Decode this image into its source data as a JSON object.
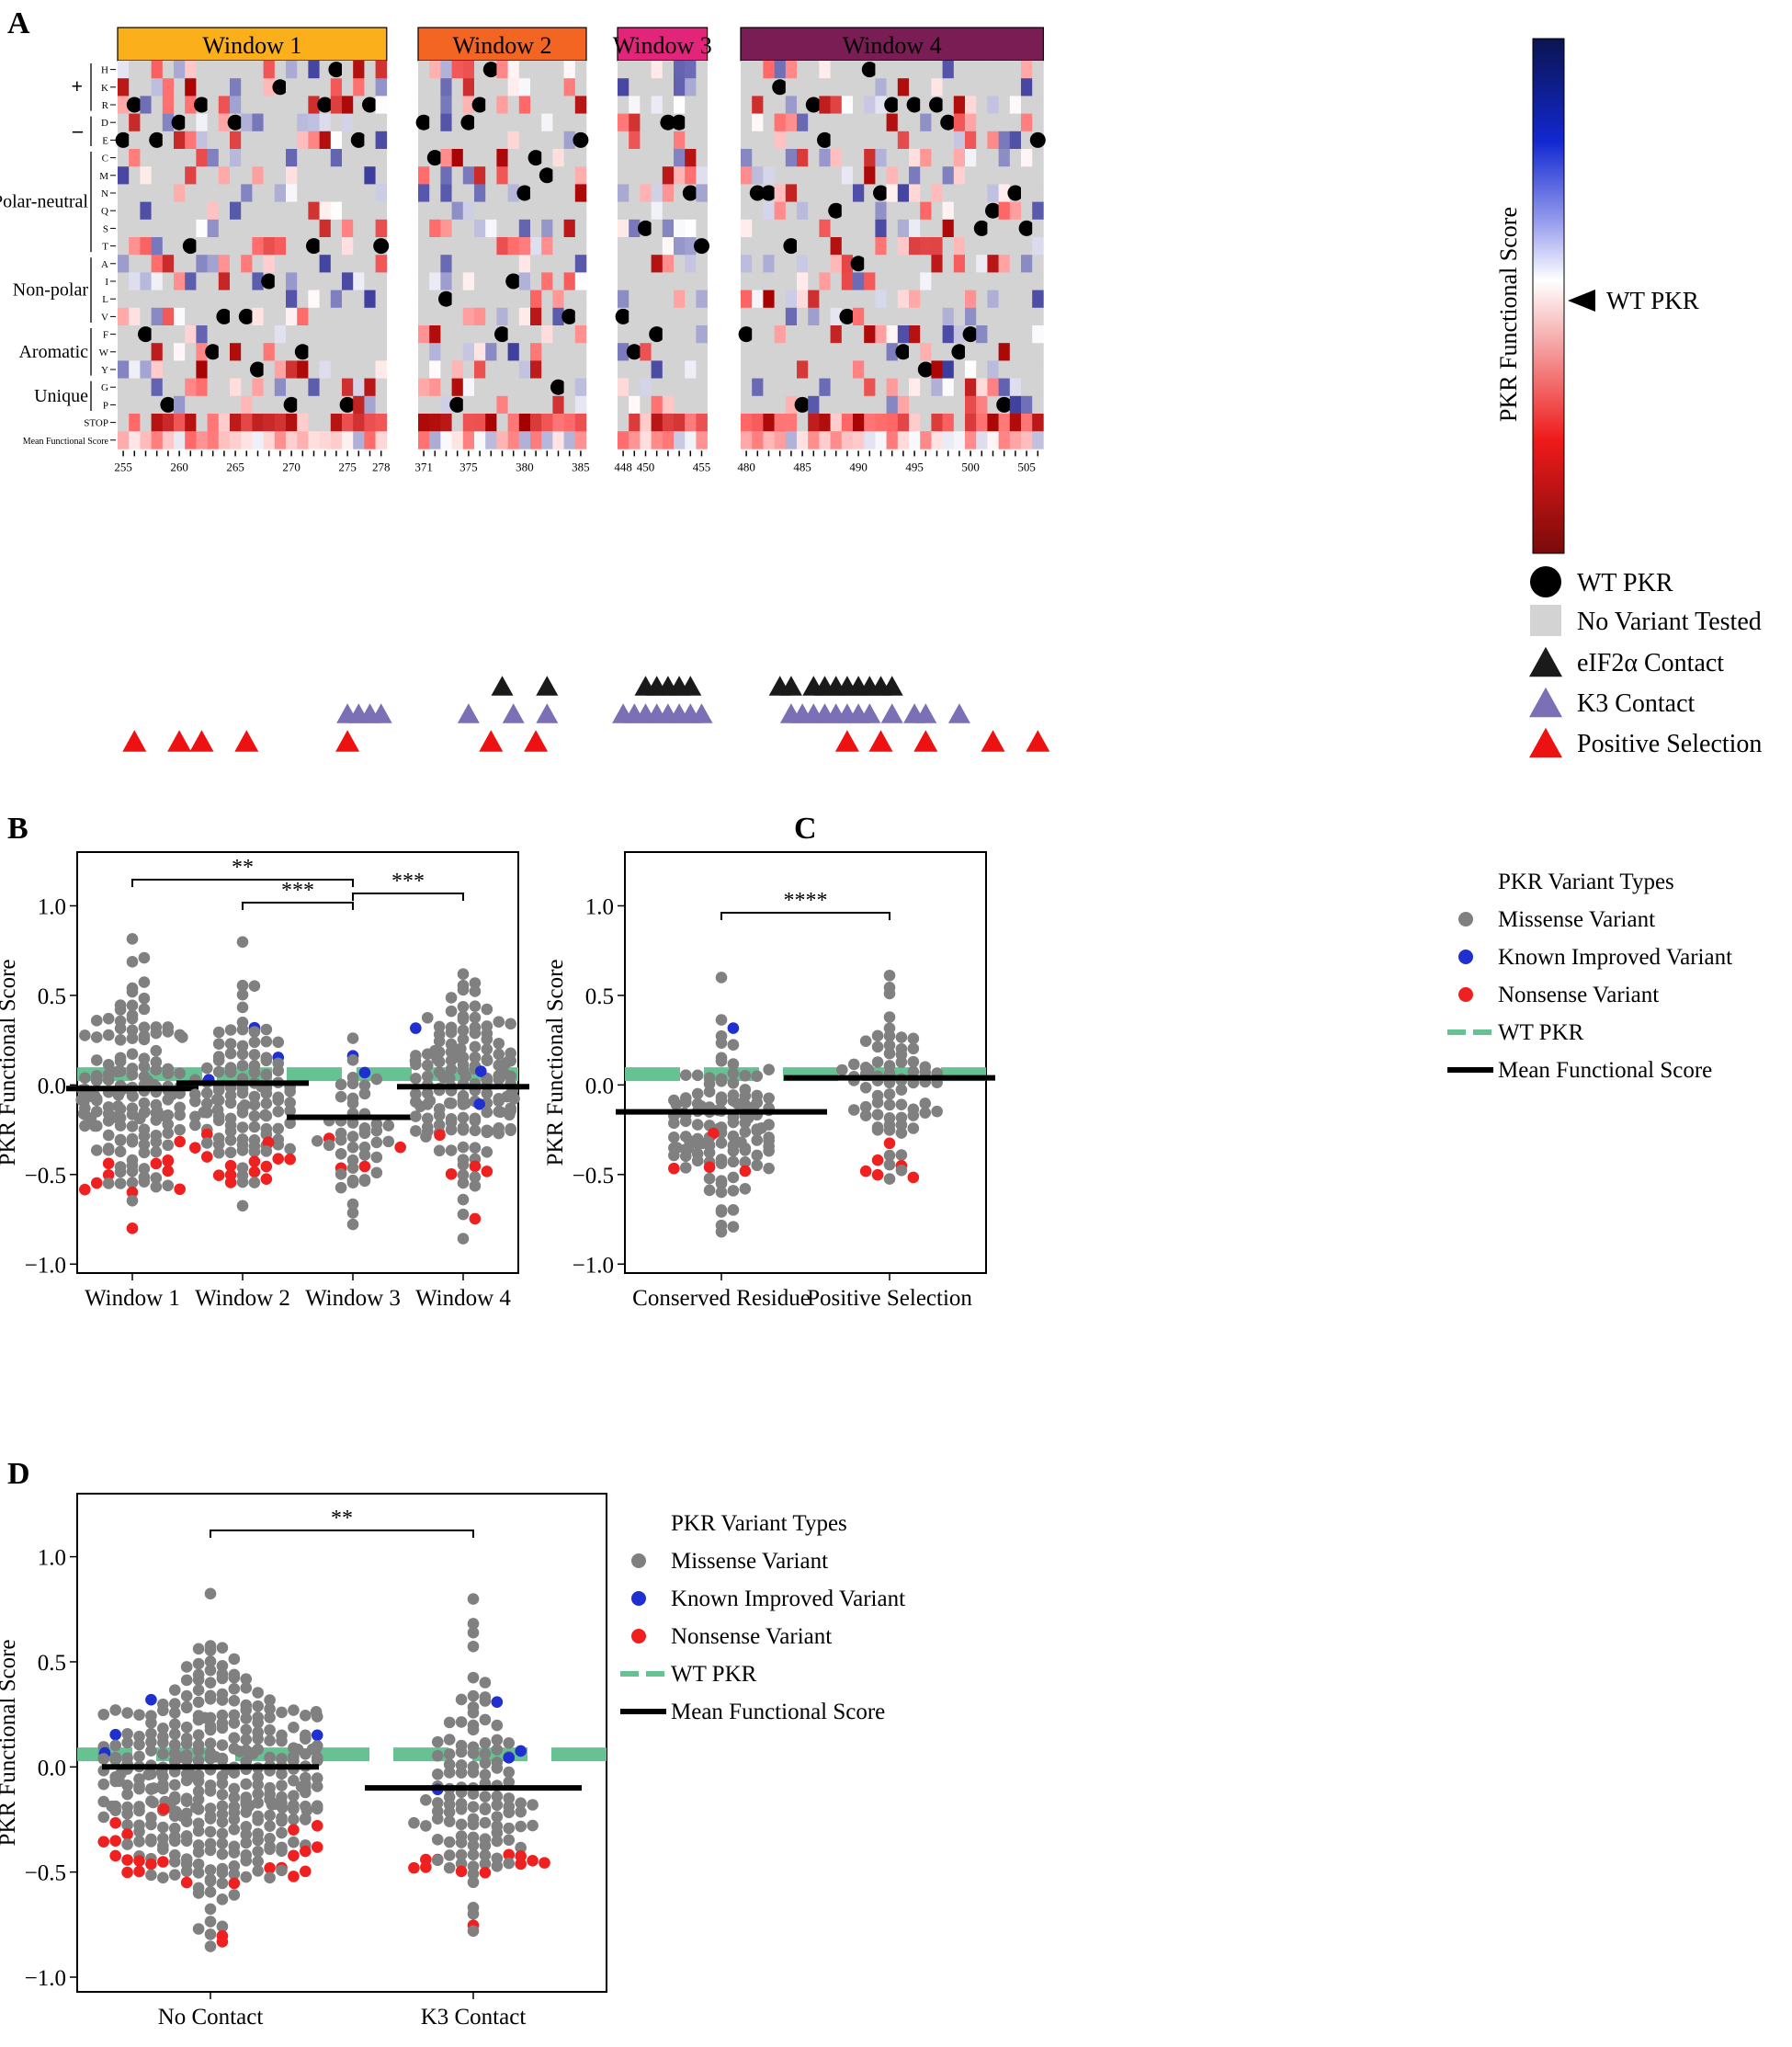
{
  "figure": {
    "panel_labels": [
      "A",
      "B",
      "C",
      "D"
    ],
    "colors": {
      "wt_line": "#66c293",
      "missense": "#808080",
      "known_improved": "#1f2fd0",
      "nonsense": "#ef2020",
      "mean_line": "#000000",
      "no_variant": "#d3d3d3",
      "window1": "#fbb01b",
      "window2": "#f26522",
      "window3": "#e2247b",
      "window4": "#7b1d55",
      "eif2a": "#1a1a1a",
      "k3": "#7b6fb5",
      "positive_selection": "#ee1111"
    }
  },
  "chart_data": [
    {
      "type": "heatmap",
      "panel": "A",
      "windows": [
        {
          "name": "Window 1",
          "start": 255,
          "end": 278,
          "ticks": [
            "255",
            "260",
            "265",
            "270",
            "275",
            "278"
          ]
        },
        {
          "name": "Window 2",
          "start": 371,
          "end": 385,
          "ticks": [
            "371",
            "375",
            "380",
            "385"
          ]
        },
        {
          "name": "Window 3",
          "start": 448,
          "end": 455,
          "ticks": [
            "448",
            "450",
            "455"
          ]
        },
        {
          "name": "Window 4",
          "start": 480,
          "end": 506,
          "ticks": [
            "480",
            "485",
            "490",
            "495",
            "500",
            "505"
          ]
        }
      ],
      "rows": [
        "H",
        "K",
        "R",
        "D",
        "E",
        "C",
        "M",
        "N",
        "Q",
        "S",
        "T",
        "A",
        "I",
        "L",
        "V",
        "F",
        "W",
        "Y",
        "G",
        "P",
        "STOP",
        "Mean Functional Score"
      ],
      "groups": [
        {
          "label": "+",
          "from": "H",
          "to": "R"
        },
        {
          "label": "–",
          "from": "D",
          "to": "E"
        },
        {
          "label": "Polar-neutral",
          "from": "C",
          "to": "T"
        },
        {
          "label": "Non-polar",
          "from": "A",
          "to": "V"
        },
        {
          "label": "Aromatic",
          "from": "F",
          "to": "Y"
        },
        {
          "label": "Unique",
          "from": "G",
          "to": "P"
        }
      ],
      "colorbar": {
        "label": "PKR Functional Score",
        "marker": "WT PKR"
      },
      "legend": [
        "WT PKR",
        "No Variant Tested",
        "eIF2α Contact",
        "K3 Contact",
        "Positive Selection"
      ],
      "eif2a_contact": [
        378,
        382,
        450,
        451,
        452,
        453,
        454,
        483,
        484,
        486,
        487,
        488,
        489,
        490,
        491,
        492,
        493
      ],
      "k3_contact": [
        275,
        276,
        277,
        278,
        375,
        379,
        382,
        448,
        449,
        450,
        451,
        452,
        453,
        454,
        455,
        484,
        485,
        486,
        487,
        488,
        489,
        490,
        491,
        493,
        495,
        496,
        499
      ],
      "positive_selection": [
        256,
        260,
        262,
        266,
        275,
        377,
        381,
        489,
        492,
        496,
        502,
        506
      ]
    },
    {
      "type": "scatter",
      "panel": "B",
      "ylabel": "PKR Functional Score",
      "ylim": [
        -1.05,
        1.3
      ],
      "yticks": [
        "1.0",
        "0.5",
        "0.0",
        "−0.5",
        "−1.0"
      ],
      "categories": [
        "Window 1",
        "Window 2",
        "Window 3",
        "Window 4"
      ],
      "wt_score": 0.06,
      "means": [
        -0.02,
        0.01,
        -0.18,
        -0.01
      ],
      "significance": [
        {
          "from": "Window 1",
          "to": "Window 3",
          "label": "**"
        },
        {
          "from": "Window 2",
          "to": "Window 3",
          "label": "***"
        },
        {
          "from": "Window 3",
          "to": "Window 4",
          "label": "***"
        }
      ],
      "groups": [
        {
          "n": 150,
          "center": -0.05,
          "spread": 0.26,
          "min": -0.65,
          "max": 0.82,
          "nonsense": [
            -0.42,
            -0.44,
            -0.5,
            -0.55,
            -0.58,
            -0.6,
            -0.44,
            -0.43,
            -0.48,
            -0.32,
            -0.58,
            -0.8
          ],
          "improved": []
        },
        {
          "n": 110,
          "center": -0.05,
          "spread": 0.27,
          "min": -0.67,
          "max": 0.8,
          "nonsense": [
            -0.28,
            -0.35,
            -0.41,
            -0.43,
            -0.45,
            -0.48,
            -0.5,
            -0.52,
            -0.54,
            -0.4,
            -0.45,
            -0.5,
            -0.42,
            -0.32
          ],
          "improved": [
            0.32,
            0.15,
            0.03
          ]
        },
        {
          "n": 45,
          "center": -0.22,
          "spread": 0.23,
          "min": -0.78,
          "max": 0.26,
          "nonsense": [
            -0.35,
            -0.45,
            -0.46,
            -0.3
          ],
          "improved": [
            0.16,
            0.07
          ]
        },
        {
          "n": 150,
          "center": -0.02,
          "spread": 0.26,
          "min": -0.86,
          "max": 0.62,
          "nonsense": [
            -0.28,
            -0.45,
            -0.5,
            -0.48,
            -0.75
          ],
          "improved": [
            0.32,
            0.08,
            -0.11
          ]
        }
      ]
    },
    {
      "type": "scatter",
      "panel": "C",
      "ylabel": "PKR Functional Score",
      "ylim": [
        -1.05,
        1.3
      ],
      "yticks": [
        "1.0",
        "0.5",
        "0.0",
        "−0.5",
        "−1.0"
      ],
      "categories": [
        "Conserved Residue",
        "Positive Selection"
      ],
      "wt_score": 0.06,
      "means": [
        -0.15,
        0.04
      ],
      "significance": [
        {
          "from": "Conserved Residue",
          "to": "Positive Selection",
          "label": "****"
        }
      ],
      "groups": [
        {
          "n": 120,
          "center": -0.2,
          "spread": 0.25,
          "min": -0.82,
          "max": 0.6,
          "nonsense": [
            -0.27,
            -0.48,
            -0.47,
            -0.46
          ],
          "improved": [
            0.32
          ]
        },
        {
          "n": 70,
          "center": 0.0,
          "spread": 0.22,
          "min": -0.52,
          "max": 0.61,
          "nonsense": [
            -0.33,
            -0.42,
            -0.45,
            -0.5,
            -0.52,
            -0.48
          ],
          "improved": []
        }
      ],
      "legend_title": "PKR Variant Types",
      "legend": [
        "Missense Variant",
        "Known Improved Variant",
        "Nonsense Variant",
        "WT PKR",
        "Mean Functional Score"
      ]
    },
    {
      "type": "scatter",
      "panel": "D",
      "ylabel": "PKR Functional Score",
      "ylim": [
        -1.07,
        1.3
      ],
      "yticks": [
        "1.0",
        "0.5",
        "0.0",
        "−0.5",
        "−1.0"
      ],
      "categories": [
        "No Contact",
        "K3 Contact"
      ],
      "wt_score": 0.06,
      "means": [
        0.0,
        -0.1
      ],
      "significance": [
        {
          "from": "No Contact",
          "to": "K3 Contact",
          "label": "**"
        }
      ],
      "groups": [
        {
          "n": 360,
          "center": -0.05,
          "spread": 0.27,
          "min": -0.85,
          "max": 0.82,
          "nonsense": [
            -0.2,
            -0.27,
            -0.3,
            -0.35,
            -0.38,
            -0.42,
            -0.45,
            -0.48,
            -0.5,
            -0.52,
            -0.44,
            -0.4,
            -0.46,
            -0.55,
            -0.5,
            -0.42,
            -0.36,
            -0.48,
            -0.5,
            -0.45,
            -0.83,
            -0.8,
            -0.28,
            -0.32,
            -0.55
          ],
          "improved": [
            0.15,
            0.15,
            0.32,
            0.07
          ]
        },
        {
          "n": 115,
          "center": -0.12,
          "spread": 0.25,
          "min": -0.78,
          "max": 0.8,
          "nonsense": [
            -0.42,
            -0.44,
            -0.46,
            -0.48,
            -0.5,
            -0.5,
            -0.45,
            -0.42,
            -0.48,
            -0.44,
            -0.75,
            -0.46
          ],
          "improved": [
            0.31,
            0.08,
            0.04,
            -0.11
          ]
        }
      ],
      "legend_title": "PKR Variant Types",
      "legend": [
        "Missense Variant",
        "Known Improved Variant",
        "Nonsense Variant",
        "WT PKR",
        "Mean Functional Score"
      ]
    }
  ]
}
